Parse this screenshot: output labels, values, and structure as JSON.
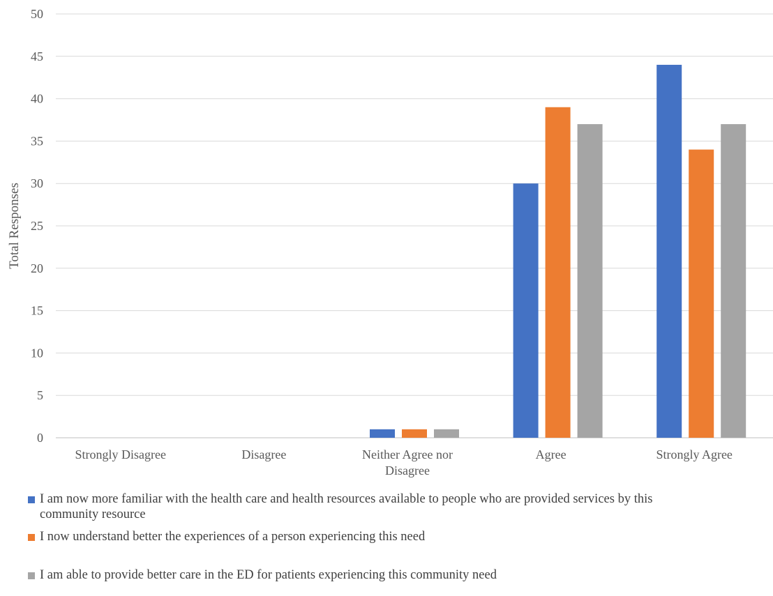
{
  "chart_data": {
    "type": "bar",
    "title": "",
    "xlabel": "",
    "ylabel": "Total Responses",
    "ylim": [
      0,
      50
    ],
    "yticks": [
      0,
      5,
      10,
      15,
      20,
      25,
      30,
      35,
      40,
      45,
      50
    ],
    "grid": true,
    "legend_position": "bottom",
    "categories": [
      [
        "Strongly Disagree"
      ],
      [
        "Disagree"
      ],
      [
        "Neither Agree nor",
        "Disagree"
      ],
      [
        "Agree"
      ],
      [
        "Strongly Agree"
      ]
    ],
    "series": [
      {
        "name": "I am now more familiar with the health care and health resources available to people who are provided services by this community resource",
        "name_lines": [
          "I am now more familiar with the health care and health resources available to people who are provided services by this",
          "community resource"
        ],
        "color": "#4472C4",
        "values": [
          0,
          0,
          1,
          30,
          44
        ]
      },
      {
        "name": "I now understand better the experiences of a person experiencing this need",
        "name_lines": [
          "I now understand better the experiences of a person experiencing this need"
        ],
        "color": "#ED7D31",
        "values": [
          0,
          0,
          1,
          39,
          34
        ]
      },
      {
        "name": "I am able to provide better care in the ED for patients experiencing this community need",
        "name_lines": [
          "I am able to provide better care in the ED for patients experiencing this community need"
        ],
        "color": "#A5A5A5",
        "values": [
          0,
          0,
          1,
          37,
          37
        ]
      }
    ]
  }
}
